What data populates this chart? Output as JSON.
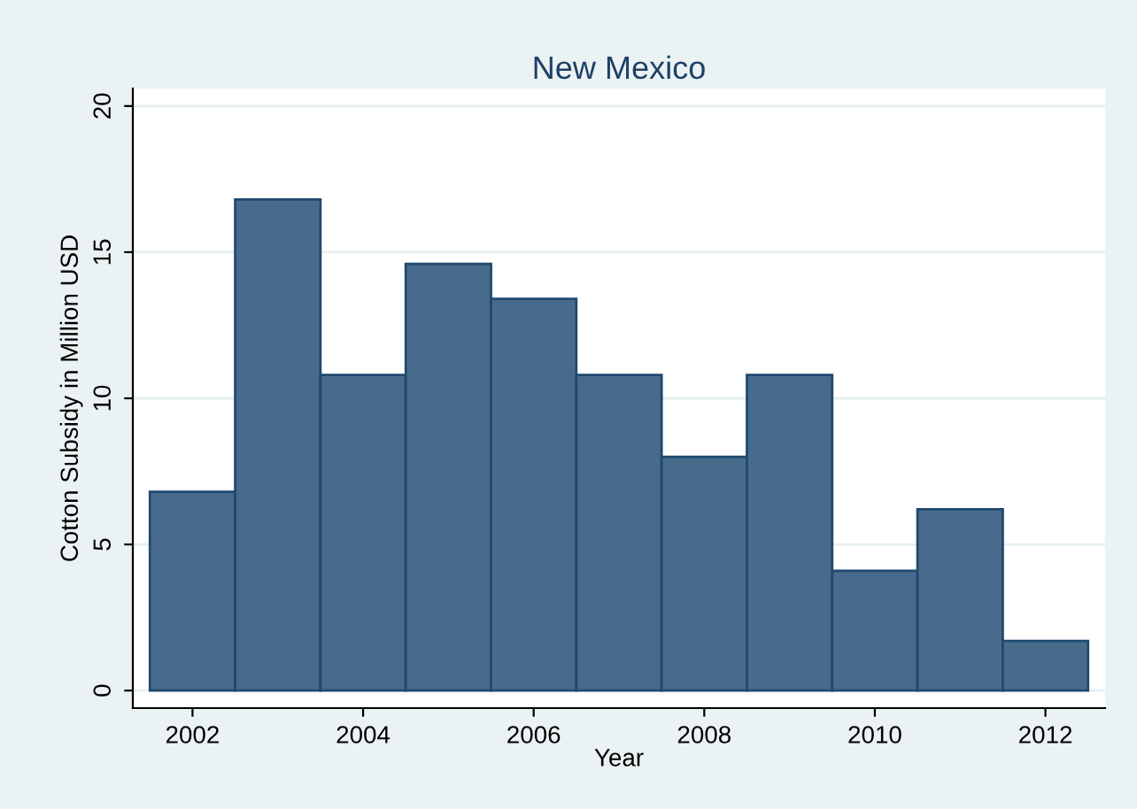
{
  "chart_data": {
    "type": "bar",
    "title": "New Mexico",
    "xlabel": "Year",
    "ylabel": "Cotton Subsidy in Million USD",
    "x": [
      2002,
      2003,
      2004,
      2005,
      2006,
      2007,
      2008,
      2009,
      2010,
      2011,
      2012
    ],
    "values": [
      6.8,
      16.8,
      10.8,
      14.6,
      13.4,
      10.8,
      8.0,
      10.8,
      4.1,
      6.2,
      1.7
    ],
    "color": "#496b8b",
    "xlim": [
      2001.3,
      2012.7
    ],
    "xticks": [
      2002,
      2004,
      2006,
      2008,
      2010,
      2012
    ],
    "ylim": [
      -0.6,
      20.6
    ],
    "yticks": [
      0,
      5,
      10,
      15,
      20
    ],
    "grid": "y",
    "legend": false
  }
}
